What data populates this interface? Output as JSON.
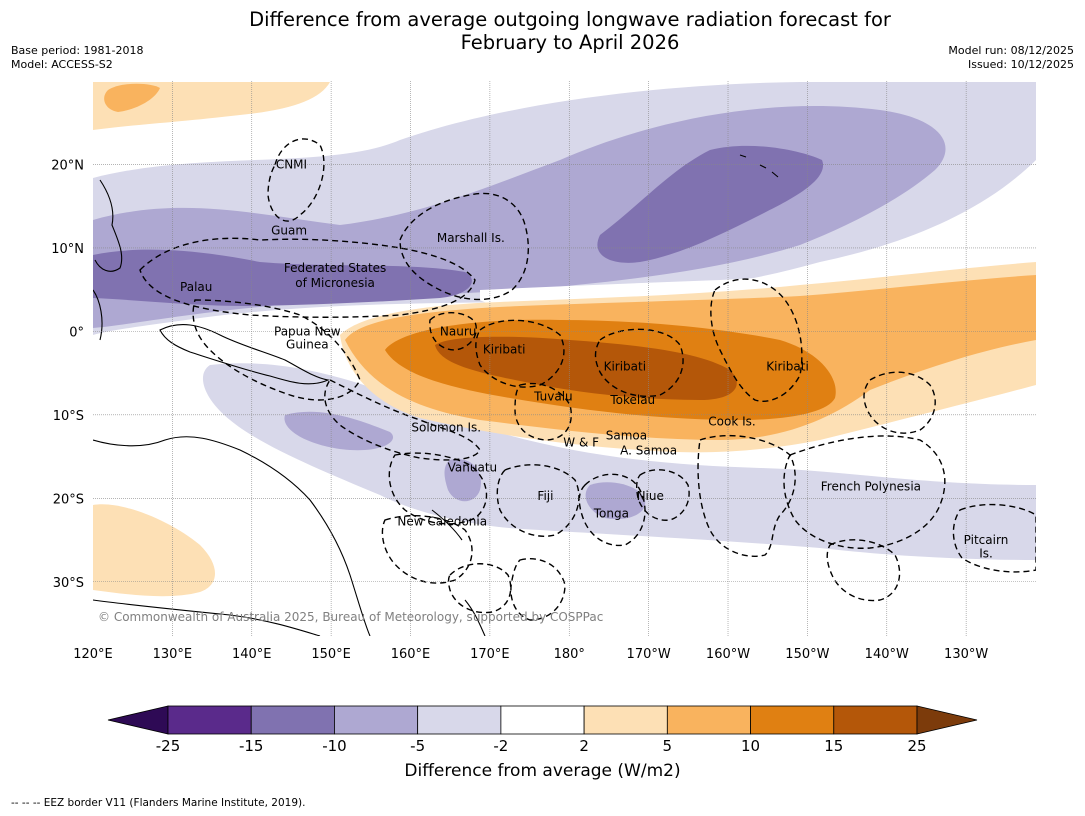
{
  "header": {
    "title_line1": "Difference from average outgoing longwave radiation forecast for",
    "title_line2": "February to April 2026",
    "base_period": "Base period: 1981-2018",
    "model": "Model: ACCESS-S2",
    "model_run": "Model run: 08/12/2025",
    "issued": "Issued: 10/12/2025"
  },
  "map": {
    "lon_labels": [
      "120°E",
      "130°E",
      "140°E",
      "150°E",
      "160°E",
      "170°E",
      "180°",
      "170°W",
      "160°W",
      "150°W",
      "140°W",
      "130°W"
    ],
    "lat_labels": [
      "20°N",
      "10°N",
      "0°",
      "10°S",
      "20°S",
      "30°S"
    ],
    "copyright": "© Commonwealth of Australia 2025, Bureau of Meteorology, supported by COSPPac",
    "places": [
      {
        "name": "CNMI",
        "lon": 145.0,
        "lat": 20.0
      },
      {
        "name": "Guam",
        "lon": 144.7,
        "lat": 12.1
      },
      {
        "name": "Marshall Is.",
        "lon": 167.6,
        "lat": 11.2
      },
      {
        "name": "Federated States",
        "lon": 150.5,
        "lat": 7.6
      },
      {
        "name": "of Micronesia",
        "lon": 150.5,
        "lat": 5.8
      },
      {
        "name": "Palau",
        "lon": 133.0,
        "lat": 5.3
      },
      {
        "name": "Papua New",
        "lon": 147.0,
        "lat": 0.0
      },
      {
        "name": "Guinea",
        "lon": 147.0,
        "lat": -1.6
      },
      {
        "name": "Nauru",
        "lon": 166.0,
        "lat": 0.0
      },
      {
        "name": "Kiribati",
        "lon": 171.8,
        "lat": -2.2
      },
      {
        "name": "Kiribati",
        "lon": 187.0,
        "lat": -4.2
      },
      {
        "name": "Kiribati",
        "lon": 207.5,
        "lat": -4.2
      },
      {
        "name": "Tuvalu",
        "lon": 178.0,
        "lat": -7.8
      },
      {
        "name": "Tokelau",
        "lon": 188.0,
        "lat": -8.2
      },
      {
        "name": "Cook Is.",
        "lon": 200.5,
        "lat": -10.8
      },
      {
        "name": "Solomon Is.",
        "lon": 164.5,
        "lat": -11.5
      },
      {
        "name": "Samoa",
        "lon": 187.2,
        "lat": -12.5
      },
      {
        "name": "W & F",
        "lon": 181.5,
        "lat": -13.3
      },
      {
        "name": "A. Samoa",
        "lon": 190.0,
        "lat": -14.3
      },
      {
        "name": "Vanuatu",
        "lon": 167.8,
        "lat": -16.3
      },
      {
        "name": "French Polynesia",
        "lon": 218.0,
        "lat": -18.6
      },
      {
        "name": "Fiji",
        "lon": 177.0,
        "lat": -19.7
      },
      {
        "name": "Niue",
        "lon": 190.2,
        "lat": -19.7
      },
      {
        "name": "Tonga",
        "lon": 185.3,
        "lat": -21.8
      },
      {
        "name": "New Caledonia",
        "lon": 164.0,
        "lat": -22.8
      },
      {
        "name": "Pitcairn",
        "lon": 232.5,
        "lat": -25.0
      },
      {
        "name": "Is.",
        "lon": 232.5,
        "lat": -26.6
      }
    ]
  },
  "colorbar": {
    "colors": [
      "#2e0a55",
      "#5a2a8b",
      "#8072b0",
      "#aea8d2",
      "#d8d8ea",
      "#ffffff",
      "#fde0b5",
      "#f9b35e",
      "#e08012",
      "#b45709",
      "#7c3b0b"
    ],
    "tick_labels": [
      "-25",
      "-15",
      "-10",
      "-5",
      "-2",
      "2",
      "5",
      "10",
      "15",
      "25"
    ],
    "title": "Difference from average (W/m2)"
  },
  "footer": "-- -- -- EEZ border V11 (Flanders Marine Institute, 2019)."
}
